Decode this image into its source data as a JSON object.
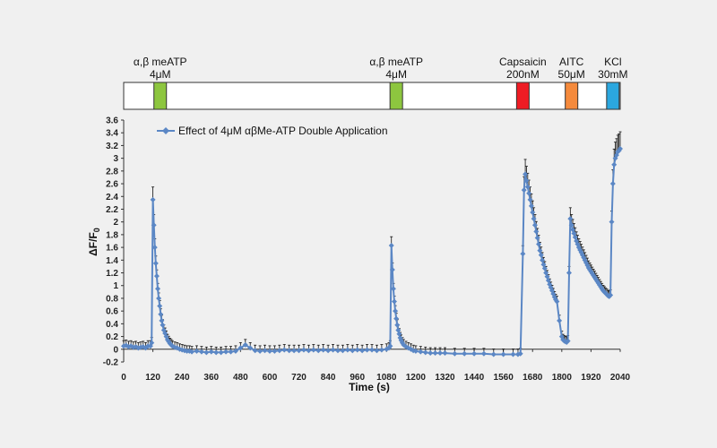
{
  "chart_data": {
    "type": "line",
    "legend": "Effect of 4μM αβMe-ATP Double Application",
    "xlabel": "Time (s)",
    "ylabel_main": "ΔF/F",
    "ylabel_sub": "0",
    "xlim": [
      0,
      2040
    ],
    "ylim": [
      -0.2,
      3.6
    ],
    "x_ticks": [
      "0",
      "120",
      "240",
      "360",
      "480",
      "600",
      "720",
      "840",
      "960",
      "1080",
      "1200",
      "1320",
      "1440",
      "1560",
      "1680",
      "1800",
      "1920",
      "2040"
    ],
    "y_ticks": [
      "-0.2",
      "0",
      "0.2",
      "0.4",
      "0.6",
      "0.8",
      "1",
      "1.2",
      "1.4",
      "1.6",
      "1.8",
      "2",
      "2.2",
      "2.4",
      "2.6",
      "2.8",
      "3",
      "3.2",
      "3.4",
      "3.6"
    ],
    "series": [
      {
        "color": "#5b87c5",
        "points": [
          [
            0,
            0.05
          ],
          [
            10,
            0.06
          ],
          [
            20,
            0.04
          ],
          [
            30,
            0.05
          ],
          [
            40,
            0.03
          ],
          [
            50,
            0.04
          ],
          [
            60,
            0.02
          ],
          [
            70,
            0.03
          ],
          [
            80,
            0.04
          ],
          [
            90,
            0.02
          ],
          [
            100,
            0.05
          ],
          [
            110,
            0.05
          ],
          [
            115,
            0.1
          ],
          [
            120,
            2.35
          ],
          [
            124,
            1.95
          ],
          [
            128,
            1.6
          ],
          [
            132,
            1.35
          ],
          [
            136,
            1.15
          ],
          [
            140,
            0.95
          ],
          [
            144,
            0.8
          ],
          [
            148,
            0.68
          ],
          [
            152,
            0.55
          ],
          [
            156,
            0.45
          ],
          [
            160,
            0.38
          ],
          [
            165,
            0.3
          ],
          [
            170,
            0.25
          ],
          [
            175,
            0.2
          ],
          [
            180,
            0.15
          ],
          [
            185,
            0.12
          ],
          [
            190,
            0.09
          ],
          [
            195,
            0.07
          ],
          [
            200,
            0.05
          ],
          [
            210,
            0.03
          ],
          [
            220,
            0.02
          ],
          [
            230,
            0.0
          ],
          [
            240,
            -0.01
          ],
          [
            250,
            -0.02
          ],
          [
            260,
            -0.03
          ],
          [
            270,
            -0.03
          ],
          [
            280,
            -0.04
          ],
          [
            300,
            -0.03
          ],
          [
            320,
            -0.04
          ],
          [
            340,
            -0.05
          ],
          [
            360,
            -0.04
          ],
          [
            380,
            -0.05
          ],
          [
            400,
            -0.05
          ],
          [
            420,
            -0.04
          ],
          [
            440,
            -0.04
          ],
          [
            460,
            -0.03
          ],
          [
            480,
            0.02
          ],
          [
            500,
            0.07
          ],
          [
            520,
            0.02
          ],
          [
            540,
            -0.02
          ],
          [
            560,
            -0.03
          ],
          [
            580,
            -0.02
          ],
          [
            600,
            -0.03
          ],
          [
            620,
            -0.03
          ],
          [
            640,
            -0.02
          ],
          [
            660,
            -0.01
          ],
          [
            680,
            -0.02
          ],
          [
            700,
            -0.02
          ],
          [
            720,
            -0.02
          ],
          [
            740,
            -0.01
          ],
          [
            760,
            -0.02
          ],
          [
            780,
            -0.01
          ],
          [
            800,
            -0.02
          ],
          [
            820,
            -0.01
          ],
          [
            840,
            -0.02
          ],
          [
            860,
            -0.01
          ],
          [
            880,
            -0.02
          ],
          [
            900,
            -0.02
          ],
          [
            920,
            -0.01
          ],
          [
            940,
            -0.02
          ],
          [
            960,
            -0.01
          ],
          [
            980,
            -0.02
          ],
          [
            1000,
            -0.01
          ],
          [
            1020,
            -0.01
          ],
          [
            1040,
            -0.02
          ],
          [
            1060,
            -0.01
          ],
          [
            1080,
            0.0
          ],
          [
            1090,
            0.02
          ],
          [
            1095,
            0.05
          ],
          [
            1100,
            1.63
          ],
          [
            1104,
            1.25
          ],
          [
            1108,
            0.95
          ],
          [
            1112,
            0.75
          ],
          [
            1116,
            0.6
          ],
          [
            1120,
            0.48
          ],
          [
            1124,
            0.38
          ],
          [
            1128,
            0.3
          ],
          [
            1132,
            0.24
          ],
          [
            1136,
            0.18
          ],
          [
            1140,
            0.14
          ],
          [
            1145,
            0.1
          ],
          [
            1150,
            0.07
          ],
          [
            1160,
            0.04
          ],
          [
            1170,
            0.02
          ],
          [
            1180,
            0.0
          ],
          [
            1190,
            -0.02
          ],
          [
            1200,
            -0.03
          ],
          [
            1220,
            -0.04
          ],
          [
            1240,
            -0.05
          ],
          [
            1260,
            -0.06
          ],
          [
            1280,
            -0.06
          ],
          [
            1300,
            -0.06
          ],
          [
            1320,
            -0.06
          ],
          [
            1360,
            -0.07
          ],
          [
            1400,
            -0.07
          ],
          [
            1440,
            -0.07
          ],
          [
            1480,
            -0.07
          ],
          [
            1520,
            -0.08
          ],
          [
            1560,
            -0.08
          ],
          [
            1600,
            -0.08
          ],
          [
            1620,
            -0.08
          ],
          [
            1630,
            -0.07
          ],
          [
            1640,
            1.5
          ],
          [
            1645,
            2.5
          ],
          [
            1650,
            2.75
          ],
          [
            1655,
            2.65
          ],
          [
            1660,
            2.55
          ],
          [
            1665,
            2.45
          ],
          [
            1670,
            2.35
          ],
          [
            1675,
            2.25
          ],
          [
            1680,
            2.15
          ],
          [
            1685,
            2.05
          ],
          [
            1690,
            1.95
          ],
          [
            1695,
            1.85
          ],
          [
            1700,
            1.75
          ],
          [
            1705,
            1.65
          ],
          [
            1710,
            1.55
          ],
          [
            1715,
            1.48
          ],
          [
            1720,
            1.4
          ],
          [
            1725,
            1.33
          ],
          [
            1730,
            1.27
          ],
          [
            1735,
            1.2
          ],
          [
            1740,
            1.14
          ],
          [
            1745,
            1.08
          ],
          [
            1750,
            1.02
          ],
          [
            1755,
            0.97
          ],
          [
            1760,
            0.92
          ],
          [
            1765,
            0.87
          ],
          [
            1770,
            0.82
          ],
          [
            1775,
            0.78
          ],
          [
            1780,
            0.75
          ],
          [
            1790,
            0.45
          ],
          [
            1800,
            0.2
          ],
          [
            1805,
            0.15
          ],
          [
            1810,
            0.13
          ],
          [
            1815,
            0.12
          ],
          [
            1820,
            0.11
          ],
          [
            1825,
            0.13
          ],
          [
            1830,
            1.2
          ],
          [
            1835,
            2.05
          ],
          [
            1840,
            1.95
          ],
          [
            1845,
            1.88
          ],
          [
            1850,
            1.82
          ],
          [
            1855,
            1.76
          ],
          [
            1860,
            1.7
          ],
          [
            1865,
            1.65
          ],
          [
            1870,
            1.6
          ],
          [
            1875,
            1.56
          ],
          [
            1880,
            1.52
          ],
          [
            1885,
            1.48
          ],
          [
            1890,
            1.44
          ],
          [
            1895,
            1.4
          ],
          [
            1900,
            1.36
          ],
          [
            1905,
            1.32
          ],
          [
            1910,
            1.28
          ],
          [
            1915,
            1.25
          ],
          [
            1920,
            1.22
          ],
          [
            1925,
            1.19
          ],
          [
            1930,
            1.16
          ],
          [
            1935,
            1.13
          ],
          [
            1940,
            1.1
          ],
          [
            1945,
            1.07
          ],
          [
            1950,
            1.04
          ],
          [
            1955,
            1.01
          ],
          [
            1960,
            0.98
          ],
          [
            1965,
            0.95
          ],
          [
            1970,
            0.92
          ],
          [
            1975,
            0.9
          ],
          [
            1980,
            0.88
          ],
          [
            1985,
            0.86
          ],
          [
            1990,
            0.84
          ],
          [
            1995,
            0.83
          ],
          [
            2000,
            0.85
          ],
          [
            2005,
            2.0
          ],
          [
            2010,
            2.6
          ],
          [
            2015,
            2.9
          ],
          [
            2020,
            3.0
          ],
          [
            2025,
            3.05
          ],
          [
            2030,
            3.1
          ],
          [
            2035,
            3.12
          ],
          [
            2040,
            3.15
          ]
        ]
      }
    ],
    "stimuli": [
      {
        "line1": "α,β meATP",
        "line2": "4μM",
        "x": 150,
        "color": "#8dc63f"
      },
      {
        "line1": "α,β meATP",
        "line2": "4μM",
        "x": 1120,
        "color": "#8dc63f"
      },
      {
        "line1": "Capsaicin",
        "line2": "200nM",
        "x": 1640,
        "color": "#ee1c24"
      },
      {
        "line1": "AITC",
        "line2": "50μM",
        "x": 1840,
        "color": "#f58a3c"
      },
      {
        "line1": "KCl",
        "line2": "30mM",
        "x": 2010,
        "color": "#2ba7df"
      }
    ]
  }
}
